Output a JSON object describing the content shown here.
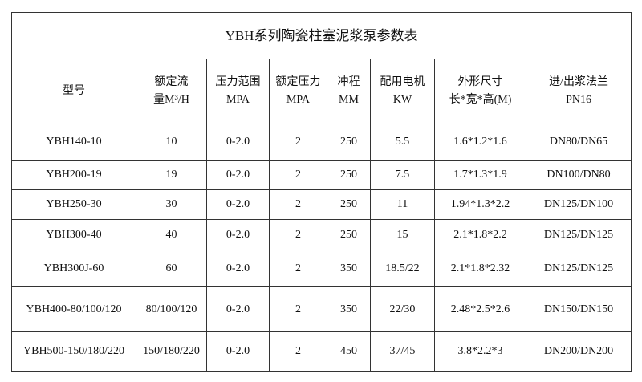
{
  "title": "YBH系列陶瓷柱塞泥浆泵参数表",
  "headers": [
    {
      "line1": "型号",
      "line2": ""
    },
    {
      "line1": "额定流",
      "line2": "量M³/H"
    },
    {
      "line1": "压力范围",
      "line2": "MPA"
    },
    {
      "line1": "额定压力",
      "line2": "MPA"
    },
    {
      "line1": "冲程",
      "line2": "MM"
    },
    {
      "line1": "配用电机",
      "line2": "KW"
    },
    {
      "line1": "外形尺寸",
      "line2": "长*宽*高(M)"
    },
    {
      "line1": "进/出浆法兰",
      "line2": "PN16"
    }
  ],
  "rows": [
    [
      "YBH140-10",
      "10",
      "0-2.0",
      "2",
      "250",
      "5.5",
      "1.6*1.2*1.6",
      "DN80/DN65"
    ],
    [
      "YBH200-19",
      "19",
      "0-2.0",
      "2",
      "250",
      "7.5",
      "1.7*1.3*1.9",
      "DN100/DN80"
    ],
    [
      "YBH250-30",
      "30",
      "0-2.0",
      "2",
      "250",
      "11",
      "1.94*1.3*2.2",
      "DN125/DN100"
    ],
    [
      "YBH300-40",
      "40",
      "0-2.0",
      "2",
      "250",
      "15",
      "2.1*1.8*2.2",
      "DN125/DN125"
    ],
    [
      "YBH300J-60",
      "60",
      "0-2.0",
      "2",
      "350",
      "18.5/22",
      "2.1*1.8*2.32",
      "DN125/DN125"
    ],
    [
      "YBH400-80/100/120",
      "80/100/120",
      "0-2.0",
      "2",
      "350",
      "22/30",
      "2.48*2.5*2.6",
      "DN150/DN150"
    ],
    [
      "YBH500-150/180/220",
      "150/180/220",
      "0-2.0",
      "2",
      "450",
      "37/45",
      "3.8*2.2*3",
      "DN200/DN200"
    ]
  ]
}
